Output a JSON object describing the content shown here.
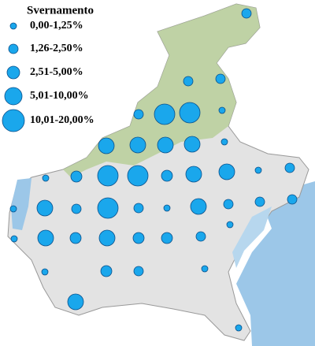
{
  "legend": {
    "title": "Svernamento",
    "items": [
      "0,00-1,25%",
      "1,26-2,50%",
      "2,51-5,00%",
      "5,01-10,00%",
      "10,01-20,00%"
    ]
  }
}
